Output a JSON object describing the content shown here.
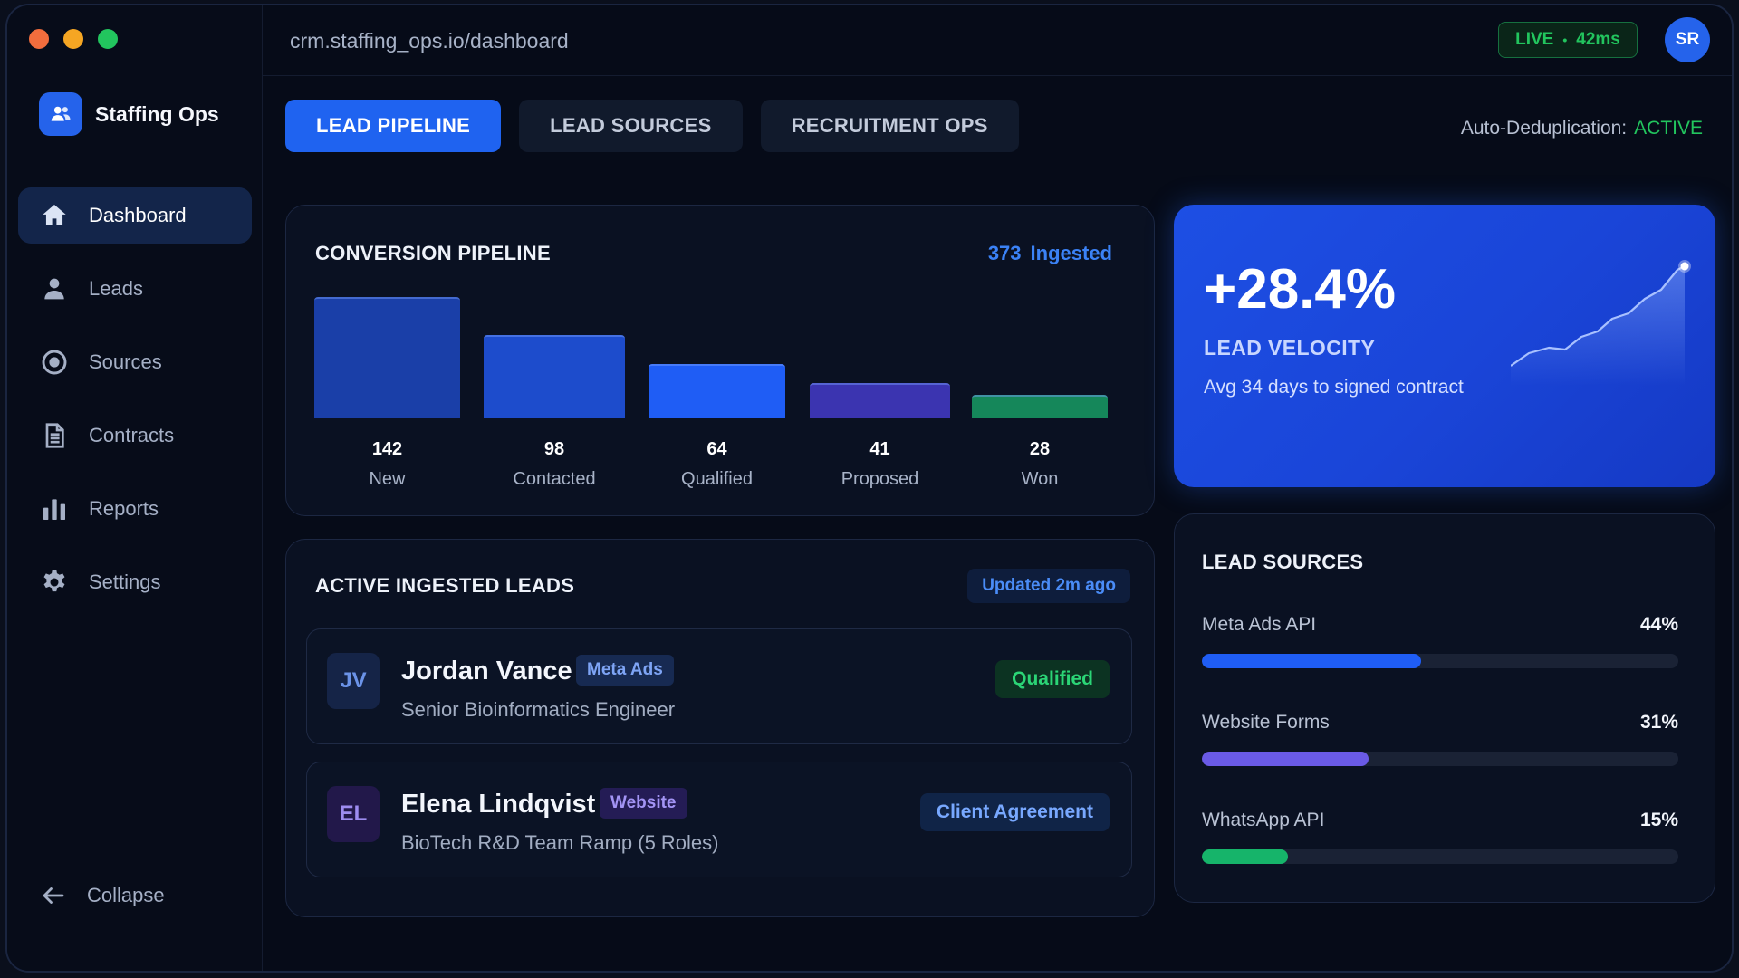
{
  "window": {
    "url": "crm.staffing_ops.io/dashboard",
    "live_label": "LIVE",
    "latency": "42ms",
    "user_initials": "SR",
    "traffic_colors": [
      "#f26d3d",
      "#f5a623",
      "#22c55e"
    ]
  },
  "sidebar": {
    "brand": "Staffing Ops",
    "items": [
      {
        "label": "Dashboard",
        "icon": "home-icon",
        "active": true
      },
      {
        "label": "Leads",
        "icon": "user-icon",
        "active": false
      },
      {
        "label": "Sources",
        "icon": "target-icon",
        "active": false
      },
      {
        "label": "Contracts",
        "icon": "document-icon",
        "active": false
      },
      {
        "label": "Reports",
        "icon": "bar-chart-icon",
        "active": false
      },
      {
        "label": "Settings",
        "icon": "gear-icon",
        "active": false
      }
    ],
    "collapse_label": "Collapse"
  },
  "tabs": [
    {
      "label": "LEAD PIPELINE",
      "active": true
    },
    {
      "label": "LEAD SOURCES",
      "active": false
    },
    {
      "label": "RECRUITMENT OPS",
      "active": false
    }
  ],
  "dedupe": {
    "label": "Auto-Deduplication:",
    "status": "ACTIVE"
  },
  "pipeline": {
    "title": "CONVERSION PIPELINE",
    "ingested_count": "373",
    "ingested_label": "Ingested"
  },
  "chart_data": {
    "type": "bar",
    "title": "CONVERSION PIPELINE",
    "categories": [
      "New",
      "Contacted",
      "Qualified",
      "Proposed",
      "Won"
    ],
    "values": [
      142,
      98,
      64,
      41,
      28
    ],
    "colors": [
      "#1a3fa8",
      "#1d4ccc",
      "#1f5df5",
      "#3b34b0",
      "#15875a"
    ],
    "bar_scale": [
      0.87,
      0.68,
      0.49,
      0.32,
      0.23
    ]
  },
  "velocity": {
    "value": "+28.4%",
    "label": "LEAD VELOCITY",
    "subtitle": "Avg 34 days to signed contract"
  },
  "leads": {
    "title": "ACTIVE INGESTED LEADS",
    "updated": "Updated 2m ago",
    "rows": [
      {
        "initials": "JV",
        "name": "Jordan Vance",
        "tag": "Meta Ads",
        "role": "Senior Bioinformatics Engineer",
        "status": "Qualified"
      },
      {
        "initials": "EL",
        "name": "Elena Lindqvist",
        "tag": "Website",
        "role": "BioTech R&D Team Ramp (5 Roles)",
        "status": "Client Agreement"
      }
    ]
  },
  "sources": {
    "title": "LEAD SOURCES",
    "items": [
      {
        "name": "Meta Ads API",
        "pct": "44%",
        "value": 0.46,
        "color": "#1f5df5"
      },
      {
        "name": "Website Forms",
        "pct": "31%",
        "value": 0.35,
        "color": "#6a5ae6"
      },
      {
        "name": "WhatsApp API",
        "pct": "15%",
        "value": 0.18,
        "color": "#16b46a"
      }
    ]
  }
}
